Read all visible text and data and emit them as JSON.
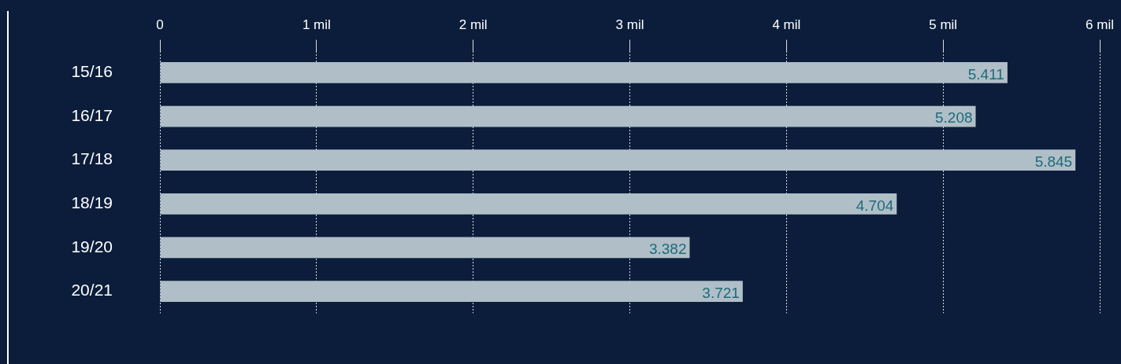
{
  "chart_data": {
    "type": "bar",
    "orientation": "horizontal",
    "categories": [
      "15/16",
      "16/17",
      "17/18",
      "18/19",
      "19/20",
      "20/21"
    ],
    "values": [
      5.411,
      5.208,
      5.845,
      4.704,
      3.382,
      3.721
    ],
    "data_labels": true,
    "color": "#b0bec8",
    "xlim": [
      0,
      6
    ],
    "xticks": [
      0,
      {
        "value": 1,
        "label": "1 mil"
      },
      {
        "value": 2,
        "label": "2 mil"
      },
      {
        "value": 3,
        "label": "3 mil"
      },
      {
        "value": 4,
        "label": "4 mil"
      },
      {
        "value": 5,
        "label": "5 mil"
      },
      {
        "value": 6,
        "label": "6 mil"
      }
    ],
    "grid": "x"
  }
}
